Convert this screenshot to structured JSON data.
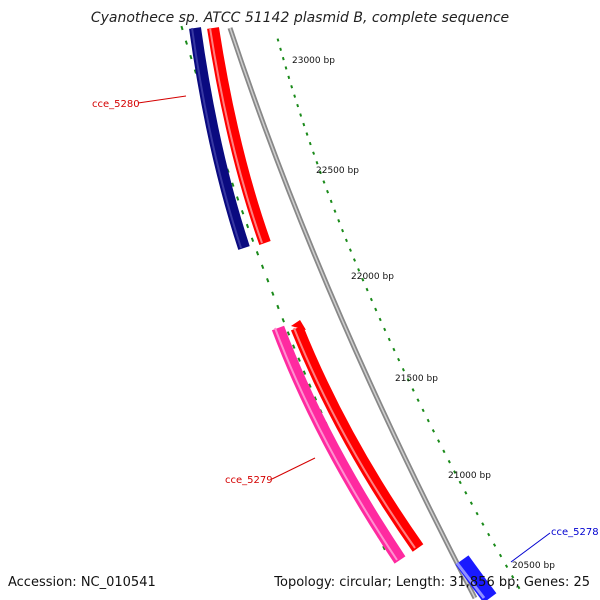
{
  "title": "Cyanothece sp. ATCC 51142 plasmid B, complete sequence",
  "footer": {
    "accession": "Accession: NC_010541",
    "summary": "Topology: circular; Length: 31,856 bp; Genes: 25"
  },
  "ticks": [
    "23000 bp",
    "22500 bp",
    "22000 bp",
    "21500 bp",
    "21000 bp",
    "20500 bp"
  ],
  "genes": [
    {
      "name": "cce_5280",
      "color": "#d40000"
    },
    {
      "name": "cce_5279",
      "color": "#d40000"
    },
    {
      "name": "cce_5278",
      "color": "#0000d0"
    }
  ],
  "colors": {
    "backbone": "#888888",
    "tick": "#1a8a1a",
    "navy": "#0a0a80",
    "red": "#ff0000",
    "pink": "#ff2aa0",
    "blue": "#1a1aff"
  }
}
